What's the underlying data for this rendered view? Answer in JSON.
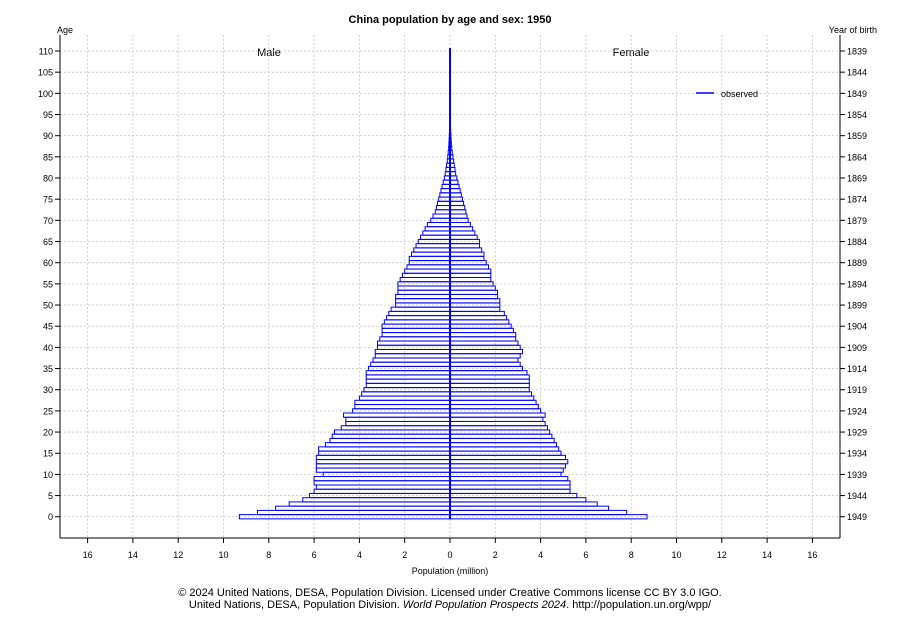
{
  "chart_data": {
    "type": "population-pyramid",
    "title": "China population by age and sex: 1950",
    "left_axis_title": "Age",
    "right_axis_title": "Year of birth",
    "xlabel": "Population (million)",
    "left_group_label": "Male",
    "right_group_label": "Female",
    "legend": [
      {
        "name": "observed",
        "color": "#0000ff"
      }
    ],
    "legend_position": "top-right",
    "xlim": [
      -17,
      17
    ],
    "x_ticks": [
      -16,
      -14,
      -12,
      -10,
      -8,
      -6,
      -4,
      -2,
      0,
      2,
      4,
      6,
      8,
      10,
      12,
      14,
      16
    ],
    "x_tick_labels": [
      "16",
      "14",
      "12",
      "10",
      "8",
      "6",
      "4",
      "2",
      "0",
      "2",
      "4",
      "6",
      "8",
      "10",
      "12",
      "14",
      "16"
    ],
    "ylim": [
      -2,
      112
    ],
    "age_ticks": [
      0,
      5,
      10,
      15,
      20,
      25,
      30,
      35,
      40,
      45,
      50,
      55,
      60,
      65,
      70,
      75,
      80,
      85,
      90,
      95,
      100,
      105,
      110
    ],
    "year_of_birth_ticks": [
      "1949",
      "1944",
      "1939",
      "1934",
      "1929",
      "1924",
      "1919",
      "1914",
      "1909",
      "1904",
      "1899",
      "1894",
      "1889",
      "1884",
      "1879",
      "1874",
      "1869",
      "1864",
      "1859",
      "1854",
      "1849",
      "1844",
      "1839"
    ],
    "grid": true,
    "ages": [
      0,
      1,
      2,
      3,
      4,
      5,
      6,
      7,
      8,
      9,
      10,
      11,
      12,
      13,
      14,
      15,
      16,
      17,
      18,
      19,
      20,
      21,
      22,
      23,
      24,
      25,
      26,
      27,
      28,
      29,
      30,
      31,
      32,
      33,
      34,
      35,
      36,
      37,
      38,
      39,
      40,
      41,
      42,
      43,
      44,
      45,
      46,
      47,
      48,
      49,
      50,
      51,
      52,
      53,
      54,
      55,
      56,
      57,
      58,
      59,
      60,
      61,
      62,
      63,
      64,
      65,
      66,
      67,
      68,
      69,
      70,
      71,
      72,
      73,
      74,
      75,
      76,
      77,
      78,
      79,
      80,
      81,
      82,
      83,
      84,
      85,
      86,
      87,
      88,
      89,
      90,
      91,
      92,
      93,
      94,
      95,
      96,
      97,
      98,
      99,
      100,
      101,
      102,
      103,
      104,
      105,
      106,
      107,
      108,
      109,
      110
    ],
    "series": [
      {
        "name": "Male",
        "values": [
          9.3,
          8.5,
          7.7,
          7.1,
          6.5,
          6.2,
          6.0,
          5.9,
          6.0,
          6.0,
          5.6,
          5.9,
          5.9,
          5.9,
          5.9,
          5.8,
          5.8,
          5.5,
          5.3,
          5.2,
          5.1,
          4.8,
          4.6,
          4.6,
          4.7,
          4.3,
          4.2,
          4.2,
          4.0,
          3.9,
          3.8,
          3.7,
          3.7,
          3.7,
          3.7,
          3.6,
          3.5,
          3.4,
          3.3,
          3.3,
          3.2,
          3.2,
          3.1,
          3.0,
          3.0,
          3.0,
          2.9,
          2.8,
          2.7,
          2.6,
          2.4,
          2.4,
          2.4,
          2.3,
          2.3,
          2.3,
          2.2,
          2.1,
          2.0,
          1.9,
          1.8,
          1.8,
          1.7,
          1.6,
          1.5,
          1.4,
          1.3,
          1.2,
          1.1,
          1.0,
          0.85,
          0.75,
          0.65,
          0.6,
          0.55,
          0.5,
          0.45,
          0.4,
          0.35,
          0.3,
          0.25,
          0.21,
          0.18,
          0.15,
          0.12,
          0.1,
          0.08,
          0.06,
          0.05,
          0.04,
          0.03,
          0.025,
          0.02,
          0.015,
          0.01,
          0.008,
          0.006,
          0.004,
          0.003,
          0.002,
          0.001,
          0.001,
          0.001,
          0.001,
          0.0,
          0.0,
          0.0,
          0.0,
          0.0,
          0.0,
          0.0
        ]
      },
      {
        "name": "Female",
        "values": [
          8.7,
          7.8,
          7.0,
          6.5,
          6.0,
          5.6,
          5.3,
          5.3,
          5.3,
          5.2,
          4.9,
          5.0,
          5.1,
          5.2,
          5.1,
          4.9,
          4.8,
          4.7,
          4.6,
          4.5,
          4.4,
          4.3,
          4.2,
          4.1,
          4.2,
          4.0,
          3.9,
          3.8,
          3.7,
          3.6,
          3.5,
          3.5,
          3.5,
          3.5,
          3.4,
          3.2,
          3.1,
          3.0,
          3.1,
          3.2,
          3.1,
          3.0,
          2.9,
          2.9,
          2.8,
          2.7,
          2.6,
          2.5,
          2.4,
          2.2,
          2.2,
          2.2,
          2.1,
          2.1,
          2.0,
          1.9,
          1.8,
          1.8,
          1.8,
          1.7,
          1.6,
          1.5,
          1.5,
          1.4,
          1.3,
          1.3,
          1.2,
          1.1,
          1.0,
          0.9,
          0.8,
          0.75,
          0.7,
          0.65,
          0.6,
          0.55,
          0.5,
          0.45,
          0.4,
          0.35,
          0.3,
          0.25,
          0.22,
          0.19,
          0.16,
          0.13,
          0.1,
          0.08,
          0.06,
          0.05,
          0.04,
          0.03,
          0.02,
          0.015,
          0.01,
          0.008,
          0.006,
          0.004,
          0.003,
          0.002,
          0.001,
          0.001,
          0.001,
          0.001,
          0.0,
          0.0,
          0.0,
          0.0,
          0.0,
          0.0,
          0.0
        ]
      }
    ],
    "bar_color": "#0000ff"
  },
  "footer": {
    "line1": "© 2024 United Nations, DESA, Population Division. Licensed under Creative Commons license CC BY 3.0 IGO.",
    "line2_prefix": "United Nations, DESA, Population Division. ",
    "line2_italic": "World Population Prospects 2024",
    "line2_suffix": ". http://population.un.org/wpp/"
  }
}
